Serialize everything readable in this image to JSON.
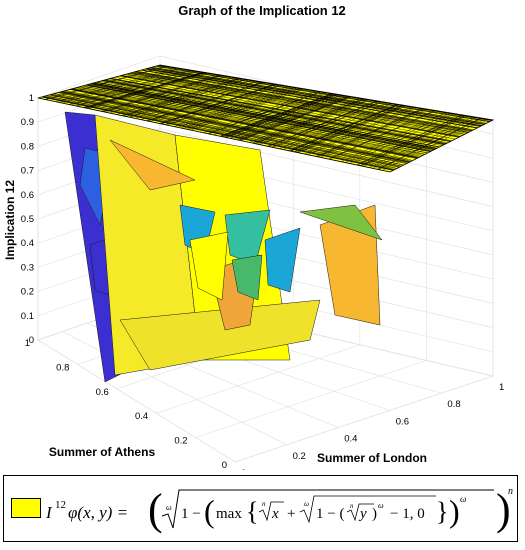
{
  "chart_data": {
    "type": "surface",
    "title": "Graph of the Implication 12",
    "xlabel": "Summer of London",
    "ylabel": "Summer of Athens",
    "zlabel": "Implication 12",
    "xlim": [
      0,
      1
    ],
    "ylim": [
      0,
      1
    ],
    "zlim": [
      0,
      1
    ],
    "x_ticks": [
      "0",
      "0.2",
      "0.4",
      "0.6",
      "0.8",
      "1"
    ],
    "y_ticks": [
      "0",
      "0.2",
      "0.4",
      "0.6",
      "0.8",
      "1"
    ],
    "z_ticks": [
      "0",
      "0.1",
      "0.2",
      "0.3",
      "0.4",
      "0.5",
      "0.6",
      "0.7",
      "0.8",
      "0.9",
      "1"
    ],
    "grid": true,
    "colormap": "parula",
    "colors": {
      "yellow": "#ffff00",
      "blue": "#3b2fd1",
      "orange": "#f7b731",
      "teal": "#1aa6d6",
      "green": "#7fc241"
    },
    "surface_top_level": 1,
    "legend": {
      "label": "I^12_φ(x, y)",
      "placement": "bottom"
    }
  }
}
